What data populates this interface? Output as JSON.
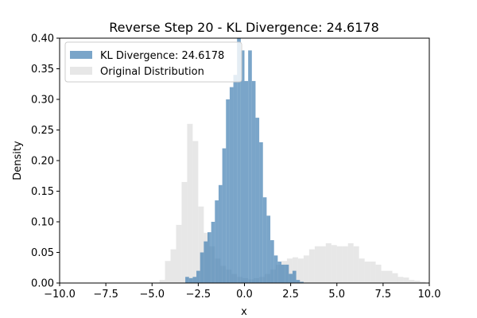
{
  "chart_data": {
    "type": "bar",
    "title": "Reverse Step 20 - KL Divergence: 24.6178",
    "xlabel": "x",
    "ylabel": "Density",
    "xlim": [
      -10.0,
      10.0
    ],
    "ylim": [
      0.0,
      0.4
    ],
    "x_ticks": [
      -10.0,
      -7.5,
      -5.0,
      -2.5,
      0.0,
      2.5,
      5.0,
      7.5,
      10.0
    ],
    "x_tick_labels": [
      "−10.0",
      "−7.5",
      "−5.0",
      "−2.5",
      "0.0",
      "2.5",
      "5.0",
      "7.5",
      "10.0"
    ],
    "y_ticks": [
      0.0,
      0.05,
      0.1,
      0.15,
      0.2,
      0.25,
      0.3,
      0.35,
      0.4
    ],
    "y_tick_labels": [
      "0.00",
      "0.05",
      "0.10",
      "0.15",
      "0.20",
      "0.25",
      "0.30",
      "0.35",
      "0.40"
    ],
    "legend_position": "upper-left",
    "series": [
      {
        "name": "Original Distribution",
        "color": "#d3d3d3",
        "opacity": 0.55,
        "bin_edges": [
          -4.6,
          -4.3,
          -4.0,
          -3.7,
          -3.4,
          -3.1,
          -2.8,
          -2.5,
          -2.2,
          -1.9,
          -1.6,
          -1.3,
          -1.0,
          -0.7,
          -0.4,
          -0.1,
          0.2,
          0.5,
          0.8,
          1.1,
          1.4,
          1.7,
          2.0,
          2.3,
          2.6,
          2.9,
          3.2,
          3.5,
          3.8,
          4.1,
          4.4,
          4.7,
          5.0,
          5.3,
          5.6,
          5.9,
          6.2,
          6.5,
          6.8,
          7.1,
          7.4,
          7.7,
          8.0,
          8.3,
          8.6,
          8.9,
          9.2,
          9.5,
          9.8
        ],
        "values": [
          0.005,
          0.036,
          0.055,
          0.095,
          0.165,
          0.26,
          0.232,
          0.125,
          0.082,
          0.06,
          0.04,
          0.028,
          0.022,
          0.015,
          0.01,
          0.008,
          0.006,
          0.008,
          0.01,
          0.015,
          0.022,
          0.03,
          0.036,
          0.04,
          0.042,
          0.04,
          0.045,
          0.055,
          0.06,
          0.06,
          0.065,
          0.062,
          0.06,
          0.06,
          0.065,
          0.06,
          0.04,
          0.035,
          0.035,
          0.03,
          0.02,
          0.02,
          0.016,
          0.01,
          0.009,
          0.005,
          0.004,
          0.002
        ]
      },
      {
        "name": "KL Divergence: 24.6178",
        "color": "#4682b4",
        "opacity": 0.72,
        "bin_edges": [
          -3.2,
          -3.0,
          -2.8,
          -2.6,
          -2.4,
          -2.2,
          -2.0,
          -1.8,
          -1.6,
          -1.4,
          -1.2,
          -1.0,
          -0.8,
          -0.6,
          -0.4,
          -0.2,
          0.0,
          0.2,
          0.4,
          0.6,
          0.8,
          1.0,
          1.2,
          1.4,
          1.6,
          1.8,
          2.0,
          2.2,
          2.4,
          2.6,
          2.8,
          3.0,
          3.2
        ],
        "values": [
          0.01,
          0.008,
          0.01,
          0.02,
          0.05,
          0.068,
          0.083,
          0.1,
          0.135,
          0.16,
          0.22,
          0.3,
          0.32,
          0.34,
          0.4,
          0.38,
          0.33,
          0.38,
          0.33,
          0.27,
          0.23,
          0.14,
          0.11,
          0.07,
          0.045,
          0.035,
          0.03,
          0.03,
          0.015,
          0.02,
          0.005,
          0.002
        ]
      }
    ],
    "legend_order": [
      "KL Divergence: 24.6178",
      "Original Distribution"
    ]
  }
}
